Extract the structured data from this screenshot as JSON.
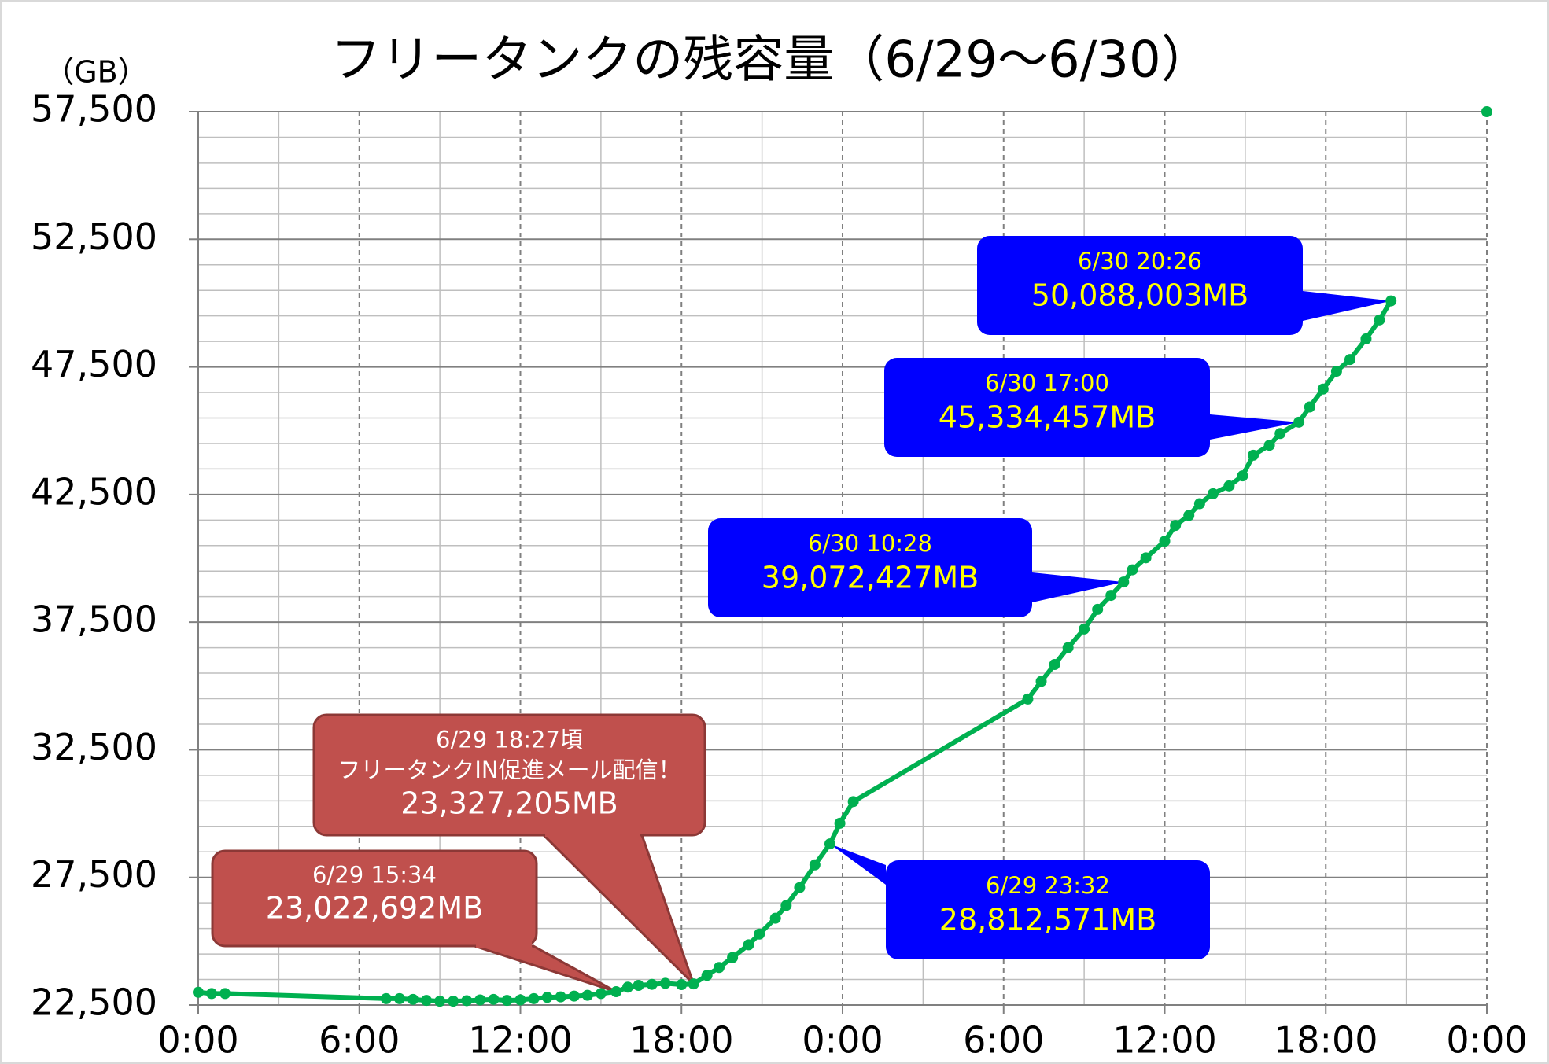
{
  "chart_data": {
    "type": "line",
    "title": "フリータンクの残容量（6/29～6/30）",
    "y_unit": "（GB）",
    "x": [
      0,
      0.5,
      1,
      7,
      7.5,
      8,
      8.5,
      9,
      9.5,
      10,
      10.5,
      11,
      11.5,
      12,
      12.5,
      13,
      13.5,
      14,
      14.5,
      15,
      15.567,
      16,
      16.4,
      16.9,
      17.4,
      18,
      18.45,
      18.95,
      19.4,
      19.9,
      20.5,
      20.9,
      21.5,
      21.9,
      22.4,
      22.97,
      23.53,
      23.9,
      24.4,
      30.9,
      31.4,
      31.9,
      32.4,
      33,
      33.5,
      34,
      34.47,
      34.8,
      35.3,
      36,
      36.4,
      36.9,
      37.3,
      37.8,
      38.4,
      38.9,
      39.3,
      39.9,
      40.3,
      41,
      41.4,
      41.9,
      42.4,
      42.9,
      43.5,
      44,
      44.43,
      46,
      48
    ],
    "series": [
      {
        "color": "#00b050",
        "values": [
          23000,
          22950,
          22950,
          22750,
          22750,
          22720,
          22680,
          22650,
          22650,
          22670,
          22700,
          22720,
          22680,
          22700,
          22750,
          22800,
          22820,
          22850,
          22880,
          22950,
          23022.692,
          23200,
          23270,
          23310,
          23350,
          23300,
          23327.205,
          23660,
          23970,
          24360,
          24860,
          25280,
          25900,
          26400,
          27100,
          27990,
          28812.571,
          29620,
          30470,
          34488,
          35180,
          35840,
          36500,
          37230,
          38000,
          38550,
          39072.427,
          39550,
          40020,
          40670,
          41290,
          41680,
          42140,
          42530,
          42840,
          43230,
          44040,
          44430,
          44890,
          45334.457,
          45930,
          46630,
          47330,
          47790,
          48600,
          49340,
          50088.003,
          null,
          57500
        ]
      }
    ],
    "xlim": [
      0,
      48
    ],
    "xticks": [
      {
        "value": 0,
        "label": "0:00"
      },
      {
        "value": 6,
        "label": "6:00"
      },
      {
        "value": 12,
        "label": "12:00"
      },
      {
        "value": 18,
        "label": "18:00"
      },
      {
        "value": 24,
        "label": "0:00"
      },
      {
        "value": 30,
        "label": "6:00"
      },
      {
        "value": 36,
        "label": "12:00"
      },
      {
        "value": 42,
        "label": "18:00"
      },
      {
        "value": 48,
        "label": "0:00"
      }
    ],
    "ylim": [
      22500,
      57500
    ],
    "yticks": [
      {
        "value": 22500,
        "label": "22,500"
      },
      {
        "value": 27500,
        "label": "27,500"
      },
      {
        "value": 32500,
        "label": "32,500"
      },
      {
        "value": 37500,
        "label": "37,500"
      },
      {
        "value": 42500,
        "label": "42,500"
      },
      {
        "value": 47500,
        "label": "47,500"
      },
      {
        "value": 52500,
        "label": "52,500"
      },
      {
        "value": 57500,
        "label": "57,500"
      }
    ],
    "grid": true,
    "annotations": [
      {
        "x": 15.567,
        "y": 23022.692,
        "color": "#c0504d",
        "text_color": "#ffffff",
        "lines": [
          "6/29 15:34",
          "23,022,692MB"
        ]
      },
      {
        "x": 18.45,
        "y": 23327.205,
        "color": "#c0504d",
        "text_color": "#ffffff",
        "lines": [
          "6/29 18:27頃",
          "フリータンクIN促進メール配信！",
          "23,327,205MB"
        ]
      },
      {
        "x": 23.53,
        "y": 28812.571,
        "color": "#0000ff",
        "text_color": "#ffff00",
        "lines": [
          "6/29 23:32",
          "28,812,571MB"
        ]
      },
      {
        "x": 34.47,
        "y": 39072.427,
        "color": "#0000ff",
        "text_color": "#ffff00",
        "lines": [
          "6/30 10:28",
          "39,072,427MB"
        ]
      },
      {
        "x": 41,
        "y": 45334.457,
        "color": "#0000ff",
        "text_color": "#ffff00",
        "lines": [
          "6/30 17:00",
          "45,334,457MB"
        ]
      },
      {
        "x": 44.43,
        "y": 50088.003,
        "color": "#0000ff",
        "text_color": "#ffff00",
        "lines": [
          "6/30 20:26",
          "50,088,003MB"
        ]
      }
    ]
  }
}
